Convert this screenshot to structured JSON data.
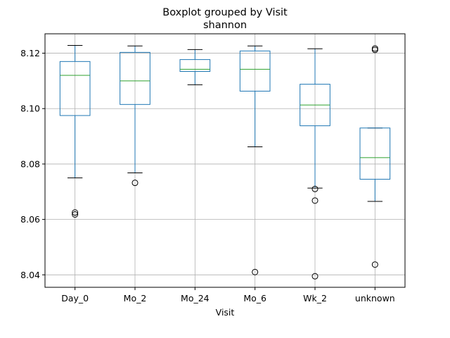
{
  "chart_data": {
    "type": "box",
    "title": "Boxplot grouped by Visit",
    "subtitle": "shannon",
    "xlabel": "Visit",
    "ylabel": "",
    "ylim": [
      8.0355,
      8.127
    ],
    "yticks": [
      8.04,
      8.06,
      8.08,
      8.1,
      8.12
    ],
    "ytick_labels": [
      "8.04",
      "8.06",
      "8.08",
      "8.10",
      "8.12"
    ],
    "grid": true,
    "categories": [
      "Day_0",
      "Mo_2",
      "Mo_24",
      "Mo_6",
      "Wk_2",
      "unknown"
    ],
    "boxes": [
      {
        "label": "Day_0",
        "whisker_low": 8.075,
        "q1": 8.0975,
        "median": 8.112,
        "q3": 8.117,
        "whisker_high": 8.1228,
        "fliers": [
          8.0625,
          8.0618
        ]
      },
      {
        "label": "Mo_2",
        "whisker_low": 8.0768,
        "q1": 8.1015,
        "median": 8.11,
        "q3": 8.1203,
        "whisker_high": 8.1226,
        "fliers": [
          8.0732
        ]
      },
      {
        "label": "Mo_24",
        "whisker_low": 8.1086,
        "q1": 8.1134,
        "median": 8.1142,
        "q3": 8.1177,
        "whisker_high": 8.1213,
        "fliers": []
      },
      {
        "label": "Mo_6",
        "whisker_low": 8.0862,
        "q1": 8.1063,
        "median": 8.1142,
        "q3": 8.1208,
        "whisker_high": 8.1226,
        "fliers": [
          8.041
        ]
      },
      {
        "label": "Wk_2",
        "whisker_low": 8.0713,
        "q1": 8.0938,
        "median": 8.1013,
        "q3": 8.1088,
        "whisker_high": 8.1216,
        "fliers": [
          8.071,
          8.0668,
          8.0395
        ]
      },
      {
        "label": "unknown",
        "whisker_low": 8.0665,
        "q1": 8.0745,
        "median": 8.0823,
        "q3": 8.093,
        "whisker_high": 8.093,
        "fliers": [
          8.1217,
          8.1212,
          8.0437
        ]
      }
    ],
    "colors": {
      "box": "#1f77b4",
      "median": "#2ca02c",
      "grid": "#b0b0b0",
      "cap": "#000000"
    }
  }
}
